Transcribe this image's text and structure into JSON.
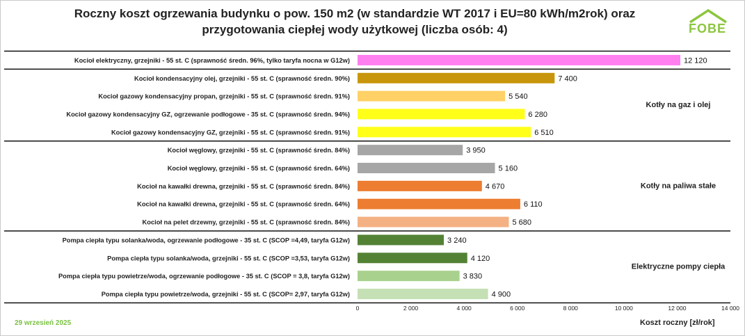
{
  "title_line1": "Roczny koszt ogrzewania budynku o pow. 150 m2 (w standardzie WT 2017 i EU=80 kWh/m2rok) oraz",
  "title_line2": "przygotowania ciepłej wody użytkowej (liczba osób: 4)",
  "logo_text": "FOBE",
  "date": "29 wrzesień 2025",
  "chart_data": {
    "type": "bar",
    "orientation": "horizontal",
    "xlabel": "Koszt roczny [zł/rok]",
    "xlim": [
      0,
      14000
    ],
    "x_ticks": [
      "0",
      "2 000",
      "4 000",
      "6 000",
      "8 000",
      "10 000",
      "12 000",
      "14 000"
    ],
    "x_tick_values": [
      0,
      2000,
      4000,
      6000,
      8000,
      10000,
      12000,
      14000
    ],
    "grid": false,
    "categories": [
      "Kocioł  elektryczny,  grzejniki - 55 st. C  (sprawność średn. 96%, tylko taryfa nocna w G12w)",
      "Kocioł  kondensacyjny olej,  grzejniki - 55 st. C (sprawność średn. 90%)",
      "Kocioł gazowy kondensacyjny propan, grzejniki - 55 st. C (sprawność średn. 91%)",
      "Kocioł gazowy kondensacyjny GZ, ogrzewanie podłogowe - 35 st. C (sprawność średn. 94%)",
      "Kocioł gazowy kondensacyjny GZ, grzejniki - 55 st. C (sprawność średn. 91%)",
      "Kocioł węglowy,  grzejniki - 55 st. C (sprawność średn. 84%)",
      "Kocioł węglowy,  grzejniki - 55 st. C (sprawność średn. 64%)",
      "Kocioł na kawałki drewna, grzejniki - 55 st. C (sprawność średn. 84%)",
      "Kocioł na kawałki drewna, grzejniki - 55 st. C (sprawność średn. 64%)",
      "Kocioł na pelet drzewny, grzejniki - 55 st. C (sprawność średn. 84%)",
      "Pompa ciepła typu solanka/woda, ogrzewanie podłogowe - 35 st. C (SCOP =4,49, taryfa G12w)",
      "Pompa ciepła typu solanka/woda, grzejniki - 55 st. C (SCOP =3,53, taryfa G12w)",
      "Pompa ciepła typu powietrze/woda, ogrzewanie podłogowe - 35 st. C (SCOP = 3,8, taryfa G12w)",
      "Pompa ciepła typu powietrze/woda, grzejniki - 55 st. C (SCOP= 2,97, taryfa G12w)"
    ],
    "values": [
      12120,
      7400,
      5540,
      6280,
      6510,
      3950,
      5160,
      4670,
      6110,
      5680,
      3240,
      4120,
      3830,
      4900
    ],
    "value_labels": [
      "12 120",
      "7 400",
      "5 540",
      "6 280",
      "6 510",
      "3 950",
      "5 160",
      "4 670",
      "6 110",
      "5 680",
      "3 240",
      "4 120",
      "3 830",
      "4 900"
    ],
    "colors": [
      "#ff7ff0",
      "#c8960c",
      "#ffd166",
      "#ffff1a",
      "#ffff1a",
      "#a6a6a6",
      "#a6a6a6",
      "#ed7d31",
      "#ed7d31",
      "#f4b183",
      "#548235",
      "#548235",
      "#a9d18e",
      "#c5e0b4"
    ],
    "groups": [
      {
        "label": "",
        "start": 0,
        "end": 0
      },
      {
        "label": "Kotły na gaz i olej",
        "start": 1,
        "end": 4
      },
      {
        "label": "Kotły na paliwa stałe",
        "start": 5,
        "end": 9
      },
      {
        "label": "Elektryczne pompy ciepła",
        "start": 10,
        "end": 13
      }
    ]
  }
}
